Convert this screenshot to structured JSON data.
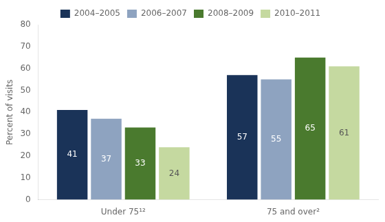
{
  "chart_data": {
    "type": "bar",
    "categories": [
      "Under 75¹²",
      "75 and over²"
    ],
    "series": [
      {
        "name": "2004–2005",
        "color": "#1a3358",
        "values": [
          41,
          57
        ]
      },
      {
        "name": "2006–2007",
        "color": "#8ea3c0",
        "values": [
          37,
          55
        ]
      },
      {
        "name": "2008–2009",
        "color": "#4a7a2e",
        "values": [
          33,
          65
        ]
      },
      {
        "name": "2010–2011",
        "color": "#c5d9a0",
        "values": [
          24,
          61
        ]
      }
    ],
    "ylabel": "Percent of visits",
    "ylim": [
      0,
      80
    ],
    "yticks": [
      0,
      10,
      20,
      30,
      40,
      50,
      60,
      70,
      80
    ],
    "grid": false,
    "legend": "top",
    "data_labels": true
  }
}
